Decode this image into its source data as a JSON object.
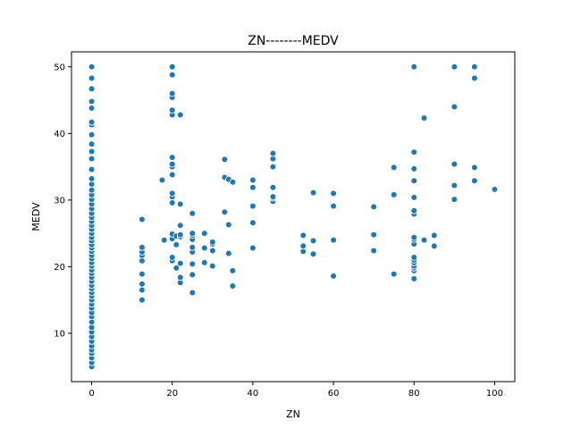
{
  "chart_data": {
    "type": "scatter",
    "title": "ZN--------MEDV",
    "xlabel": "ZN",
    "ylabel": "MEDV",
    "xlim": [
      -5,
      105
    ],
    "ylim": [
      2.75,
      52.25
    ],
    "xticks": [
      0,
      20,
      40,
      60,
      80,
      100
    ],
    "yticks": [
      10,
      20,
      30,
      40,
      50
    ],
    "grid": false,
    "marker_color": "#1f77b4",
    "points": [
      [
        0,
        5
      ],
      [
        0,
        5.6
      ],
      [
        0,
        6.3
      ],
      [
        0,
        7
      ],
      [
        0,
        7.5
      ],
      [
        0,
        8.1
      ],
      [
        0,
        8.8
      ],
      [
        0,
        9.5
      ],
      [
        0,
        10.2
      ],
      [
        0,
        10.9
      ],
      [
        0,
        11.7
      ],
      [
        0,
        12.5
      ],
      [
        0,
        13.1
      ],
      [
        0,
        13.8
      ],
      [
        0,
        14.4
      ],
      [
        0,
        15
      ],
      [
        0,
        15.6
      ],
      [
        0,
        16.1
      ],
      [
        0,
        16.7
      ],
      [
        0,
        17.2
      ],
      [
        0,
        17.8
      ],
      [
        0,
        18.4
      ],
      [
        0,
        19
      ],
      [
        0,
        19.5
      ],
      [
        0,
        20.1
      ],
      [
        0,
        20.6
      ],
      [
        0,
        21.2
      ],
      [
        0,
        21.7
      ],
      [
        0,
        22.3
      ],
      [
        0,
        22.8
      ],
      [
        0,
        23.3
      ],
      [
        0,
        23.9
      ],
      [
        0,
        24.4
      ],
      [
        0,
        25
      ],
      [
        0,
        25.6
      ],
      [
        0,
        26.2
      ],
      [
        0,
        26.8
      ],
      [
        0,
        27.4
      ],
      [
        0,
        28
      ],
      [
        0,
        28.7
      ],
      [
        0,
        29.4
      ],
      [
        0,
        30.1
      ],
      [
        0,
        30.8
      ],
      [
        0,
        31.5
      ],
      [
        0,
        32.4
      ],
      [
        0,
        33.2
      ],
      [
        0,
        34.6
      ],
      [
        0,
        36.2
      ],
      [
        0,
        37.3
      ],
      [
        0,
        38.4
      ],
      [
        0,
        39.8
      ],
      [
        0,
        41.3
      ],
      [
        0,
        41.7
      ],
      [
        0,
        43.8
      ],
      [
        0,
        44.8
      ],
      [
        0,
        46.7
      ],
      [
        0,
        48.3
      ],
      [
        0,
        50
      ],
      [
        12.5,
        15
      ],
      [
        12.5,
        16.5
      ],
      [
        12.5,
        17.4
      ],
      [
        12.5,
        18.9
      ],
      [
        12.5,
        20.9
      ],
      [
        12.5,
        21.7
      ],
      [
        12.5,
        22.2
      ],
      [
        12.5,
        22.9
      ],
      [
        12.5,
        27.1
      ],
      [
        17.5,
        33
      ],
      [
        18,
        24
      ],
      [
        20,
        20.9
      ],
      [
        20,
        21.4
      ],
      [
        20,
        24.2
      ],
      [
        20,
        24.9
      ],
      [
        20,
        29.6
      ],
      [
        20,
        30.5
      ],
      [
        20,
        31
      ],
      [
        20,
        33.8
      ],
      [
        20,
        35
      ],
      [
        20,
        35.4
      ],
      [
        20,
        36.4
      ],
      [
        20,
        42.8
      ],
      [
        20,
        43.5
      ],
      [
        20,
        45.4
      ],
      [
        20,
        46
      ],
      [
        20,
        48.8
      ],
      [
        20,
        50
      ],
      [
        21,
        19.8
      ],
      [
        21,
        23.3
      ],
      [
        21,
        24.6
      ],
      [
        22,
        17.6
      ],
      [
        22,
        18.4
      ],
      [
        22,
        20.5
      ],
      [
        22,
        24.5
      ],
      [
        22,
        24.8
      ],
      [
        22,
        26.2
      ],
      [
        22,
        29.4
      ],
      [
        22,
        42.8
      ],
      [
        25,
        16.1
      ],
      [
        25,
        18.8
      ],
      [
        25,
        20.4
      ],
      [
        25,
        22.2
      ],
      [
        25,
        22.9
      ],
      [
        25,
        24.1
      ],
      [
        25,
        24.7
      ],
      [
        25,
        25
      ],
      [
        25,
        28
      ],
      [
        28,
        20.6
      ],
      [
        28,
        22.8
      ],
      [
        28,
        25
      ],
      [
        30,
        20.1
      ],
      [
        30,
        22.4
      ],
      [
        30,
        23.4
      ],
      [
        30,
        23.7
      ],
      [
        33,
        28.2
      ],
      [
        33,
        33.4
      ],
      [
        33,
        36.1
      ],
      [
        34,
        22
      ],
      [
        34,
        26.3
      ],
      [
        34,
        33.1
      ],
      [
        35,
        17.1
      ],
      [
        35,
        19.4
      ],
      [
        35,
        32.7
      ],
      [
        40,
        22.8
      ],
      [
        40,
        26.6
      ],
      [
        40,
        29.1
      ],
      [
        40,
        31.9
      ],
      [
        40,
        33
      ],
      [
        45,
        29.8
      ],
      [
        45,
        30.3
      ],
      [
        45,
        30.5
      ],
      [
        45,
        31.9
      ],
      [
        45,
        35
      ],
      [
        45,
        36.2
      ],
      [
        45,
        37
      ],
      [
        52.5,
        22.3
      ],
      [
        52.5,
        23.1
      ],
      [
        52.5,
        24.7
      ],
      [
        55,
        21.9
      ],
      [
        55,
        23.9
      ],
      [
        55,
        31.1
      ],
      [
        60,
        18.6
      ],
      [
        60,
        24
      ],
      [
        60,
        29.1
      ],
      [
        60,
        31
      ],
      [
        70,
        22.4
      ],
      [
        70,
        24.8
      ],
      [
        70,
        29
      ],
      [
        75,
        18.9
      ],
      [
        75,
        30.8
      ],
      [
        75,
        34.9
      ],
      [
        80,
        18.2
      ],
      [
        80,
        19.4
      ],
      [
        80,
        19.8
      ],
      [
        80,
        20.1
      ],
      [
        80,
        20.6
      ],
      [
        80,
        21
      ],
      [
        80,
        21.4
      ],
      [
        80,
        23.4
      ],
      [
        80,
        24.1
      ],
      [
        80,
        24.4
      ],
      [
        80,
        27.9
      ],
      [
        80,
        28.4
      ],
      [
        80,
        30.4
      ],
      [
        80,
        32.9
      ],
      [
        80,
        34.7
      ],
      [
        80,
        37.2
      ],
      [
        80,
        50
      ],
      [
        82.5,
        24
      ],
      [
        82.5,
        42.3
      ],
      [
        85,
        23.1
      ],
      [
        85,
        24.7
      ],
      [
        90,
        30.1
      ],
      [
        90,
        32.2
      ],
      [
        90,
        35.4
      ],
      [
        90,
        44
      ],
      [
        90,
        50
      ],
      [
        95,
        32.9
      ],
      [
        95,
        34.9
      ],
      [
        95,
        48.3
      ],
      [
        95,
        50
      ],
      [
        100,
        31.6
      ]
    ]
  }
}
